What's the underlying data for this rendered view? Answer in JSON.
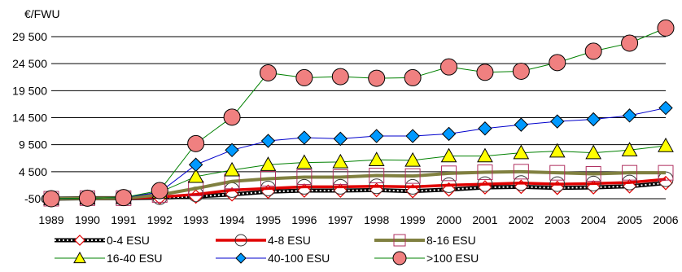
{
  "chart_data": {
    "type": "line",
    "ylabel": "€/FWU",
    "x": [
      "1989",
      "1990",
      "1991",
      "1992",
      "1993",
      "1994",
      "1995",
      "1996",
      "1997",
      "1998",
      "1999",
      "2000",
      "2001",
      "2002",
      "2003",
      "2004",
      "2005",
      "2006"
    ],
    "ylim": [
      -500,
      29500
    ],
    "yticks": [
      -500,
      4500,
      9500,
      14500,
      19500,
      24500,
      29500
    ],
    "ytick_labels": [
      "-500",
      "4 500",
      "9 500",
      "14 500",
      "19 500",
      "24 500",
      "29 500"
    ],
    "grid": "horizontal",
    "legend_position": "bottom",
    "series": [
      {
        "name": "0-4 ESU",
        "color": "#000000",
        "marker": "diamond-open",
        "values": [
          -500,
          -400,
          -400,
          -300,
          -100,
          300,
          800,
          1000,
          1000,
          1100,
          900,
          1200,
          1600,
          1700,
          1500,
          1600,
          1800,
          2400
        ]
      },
      {
        "name": "4-8 ESU",
        "color": "#e00000",
        "marker": "circle-open",
        "values": [
          -500,
          -400,
          -400,
          -200,
          300,
          1100,
          1400,
          1700,
          1700,
          1800,
          1700,
          2000,
          2200,
          2400,
          2200,
          2300,
          2500,
          3100
        ]
      },
      {
        "name": "8-16 ESU",
        "color": "#808040",
        "marker": "square-open",
        "values": [
          -500,
          -400,
          -400,
          200,
          1400,
          2700,
          3200,
          3500,
          3500,
          3800,
          3700,
          4200,
          4400,
          4500,
          4300,
          4100,
          4300,
          4300
        ]
      },
      {
        "name": "16-40 ESU",
        "color": "#008000",
        "marker": "triangle",
        "values": [
          -500,
          -400,
          -300,
          700,
          3600,
          4800,
          5800,
          6200,
          6300,
          6700,
          6600,
          7400,
          7400,
          8000,
          8300,
          8000,
          8500,
          9300
        ]
      },
      {
        "name": "40-100 ESU",
        "color": "#0000cc",
        "marker": "diamond",
        "values": [
          -500,
          -400,
          -300,
          700,
          5800,
          8500,
          10200,
          10800,
          10600,
          11100,
          11100,
          11500,
          12500,
          13200,
          13800,
          14200,
          14900,
          16300
        ]
      },
      {
        "name": ">100 ESU",
        "color": "#008000",
        "marker": "circle-filled",
        "values": [
          -500,
          -400,
          -300,
          1000,
          9700,
          14600,
          22800,
          21900,
          22100,
          21800,
          21900,
          23900,
          22900,
          23100,
          24700,
          26800,
          28300,
          31100
        ]
      }
    ]
  }
}
